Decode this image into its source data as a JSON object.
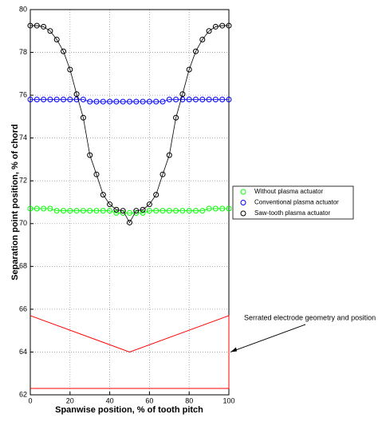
{
  "chart_data": {
    "type": "line",
    "xlabel": "Spanwise position, % of tooth pitch",
    "ylabel": "Separation point position, % of chord",
    "x": [
      0,
      3.33,
      6.67,
      10,
      13.33,
      16.67,
      20,
      23.33,
      26.67,
      30,
      33.33,
      36.67,
      40,
      43.33,
      46.67,
      50,
      53.33,
      56.67,
      60,
      63.33,
      66.67,
      70,
      73.33,
      76.67,
      80,
      83.33,
      86.67,
      90,
      93.33,
      96.67,
      100
    ],
    "series": [
      {
        "name": "Without plasma actuator",
        "color": "#00ff00",
        "values": [
          70.7,
          70.7,
          70.7,
          70.7,
          70.6,
          70.6,
          70.6,
          70.6,
          70.6,
          70.6,
          70.6,
          70.6,
          70.6,
          70.5,
          70.5,
          70.5,
          70.5,
          70.5,
          70.6,
          70.6,
          70.6,
          70.6,
          70.6,
          70.6,
          70.6,
          70.6,
          70.6,
          70.7,
          70.7,
          70.7,
          70.7
        ]
      },
      {
        "name": "Conventional plasma actuator",
        "color": "#0000ff",
        "values": [
          75.8,
          75.8,
          75.8,
          75.8,
          75.8,
          75.8,
          75.8,
          75.8,
          75.8,
          75.7,
          75.7,
          75.7,
          75.7,
          75.7,
          75.7,
          75.7,
          75.7,
          75.7,
          75.7,
          75.7,
          75.7,
          75.8,
          75.8,
          75.8,
          75.8,
          75.8,
          75.8,
          75.8,
          75.8,
          75.8,
          75.8
        ]
      },
      {
        "name": "Saw-tooth plasma actuator",
        "color": "#000000",
        "values": [
          79.25,
          79.25,
          79.2,
          79.0,
          78.6,
          78.05,
          77.2,
          76.05,
          74.95,
          73.2,
          72.3,
          71.35,
          70.9,
          70.65,
          70.6,
          70.05,
          70.6,
          70.65,
          70.9,
          71.35,
          72.3,
          73.2,
          74.95,
          76.05,
          77.2,
          78.05,
          78.6,
          79.0,
          79.2,
          79.25,
          79.25
        ]
      }
    ],
    "annotation": {
      "text": "Serrated electrode geometry and position",
      "color": "#ff0000",
      "x": [
        0,
        50,
        100,
        100,
        0
      ],
      "values": [
        65.7,
        64,
        65.7,
        62.3,
        62.3
      ]
    },
    "xlim": [
      0,
      100
    ],
    "xticks": [
      0,
      20,
      40,
      60,
      80,
      100
    ],
    "ylim": [
      62,
      80
    ],
    "yticks": [
      62,
      64,
      66,
      68,
      70,
      72,
      74,
      76,
      78,
      80
    ],
    "grid": true,
    "legend": "east-outside"
  }
}
